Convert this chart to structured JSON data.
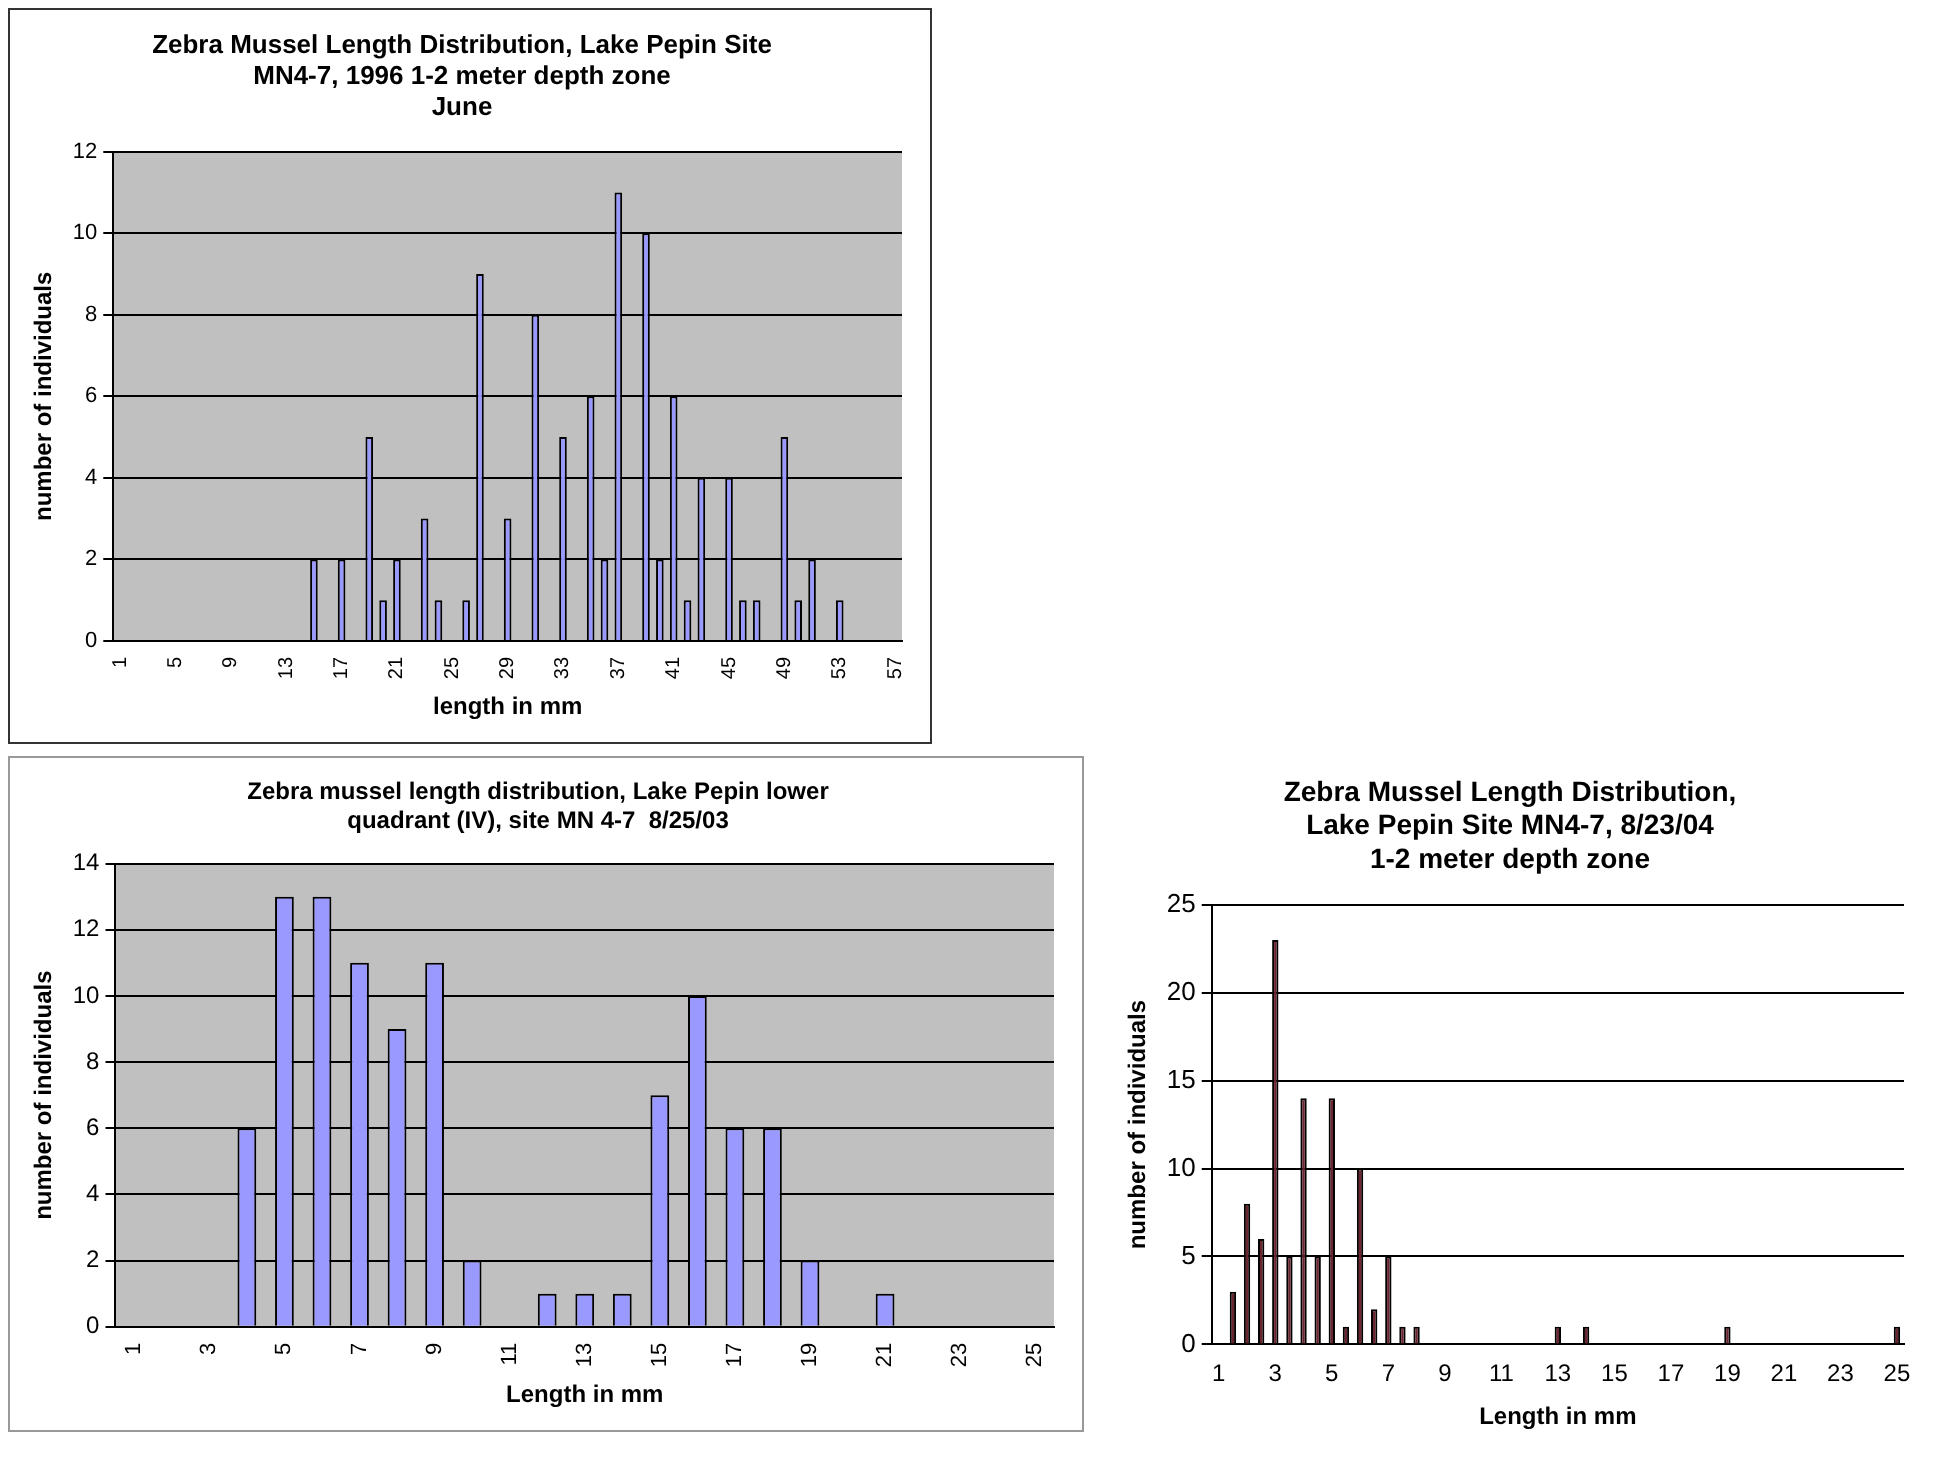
{
  "chart_data": [
    {
      "type": "bar",
      "title": "Zebra Mussel Length Distribution, Lake Pepin Site\nMN4-7, 1996 1-2 meter depth zone\nJune",
      "xlabel": "length in mm",
      "ylabel": "number of individuals",
      "color": "#9999ff",
      "grid": "y",
      "ylim": [
        0,
        12
      ],
      "yticks": [
        0,
        2,
        4,
        6,
        8,
        10,
        12
      ],
      "categories": [
        "1",
        null,
        null,
        null,
        "5",
        null,
        null,
        null,
        "9",
        null,
        null,
        null,
        "13",
        null,
        null,
        null,
        "17",
        null,
        null,
        null,
        "21",
        null,
        null,
        null,
        "25",
        null,
        null,
        null,
        "29",
        null,
        null,
        null,
        "33",
        null,
        null,
        null,
        "37",
        null,
        null,
        null,
        "41",
        null,
        null,
        null,
        "45",
        null,
        null,
        null,
        "49",
        null,
        null,
        null,
        "53",
        null,
        null,
        null,
        "57"
      ],
      "values": [
        0,
        0,
        0,
        0,
        0,
        0,
        0,
        0,
        0,
        0,
        0,
        0,
        0,
        0,
        2,
        0,
        2,
        0,
        5,
        1,
        2,
        0,
        3,
        1,
        0,
        1,
        9,
        0,
        3,
        0,
        8,
        0,
        5,
        0,
        6,
        2,
        11,
        0,
        10,
        2,
        6,
        1,
        4,
        0,
        4,
        1,
        1,
        0,
        5,
        1,
        2,
        0,
        1,
        0,
        0,
        0,
        0
      ]
    },
    {
      "type": "bar",
      "title": "Zebra mussel length distribution, Lake Pepin lower\nquadrant (IV), site MN 4-7  8/25/03",
      "xlabel": "Length in mm",
      "ylabel": "number of individuals",
      "color": "#9999ff",
      "grid": "y",
      "ylim": [
        0,
        14
      ],
      "yticks": [
        0,
        2,
        4,
        6,
        8,
        10,
        12,
        14
      ],
      "categories": [
        "1",
        null,
        "3",
        null,
        "5",
        null,
        "7",
        null,
        "9",
        null,
        "11",
        null,
        "13",
        null,
        "15",
        null,
        "17",
        null,
        "19",
        null,
        "21",
        null,
        "23",
        null,
        "25"
      ],
      "values": [
        0,
        0,
        0,
        6,
        13,
        13,
        11,
        9,
        11,
        2,
        0,
        1,
        1,
        1,
        7,
        10,
        6,
        6,
        2,
        0,
        1,
        0,
        0,
        0,
        0
      ]
    },
    {
      "type": "bar",
      "title": "Zebra Mussel Length Distribution,\nLake Pepin Site MN4-7, 8/23/04\n1-2 meter depth zone",
      "xlabel": "Length in mm",
      "ylabel": "number of individuals",
      "color": "#6b2430",
      "grid": "y",
      "ylim": [
        0,
        25
      ],
      "yticks": [
        0,
        5,
        10,
        15,
        20,
        25
      ],
      "categories": [
        "1",
        null,
        null,
        null,
        "3",
        null,
        null,
        null,
        "5",
        null,
        null,
        null,
        "7",
        null,
        null,
        null,
        "9",
        null,
        null,
        null,
        "11",
        null,
        null,
        null,
        "13",
        null,
        null,
        null,
        "15",
        null,
        null,
        null,
        "17",
        null,
        null,
        null,
        "19",
        null,
        null,
        null,
        "21",
        null,
        null,
        null,
        "23",
        null,
        null,
        null,
        "25"
      ],
      "values": [
        0,
        3,
        8,
        6,
        23,
        5,
        14,
        5,
        14,
        1,
        10,
        2,
        5,
        1,
        1,
        0,
        0,
        0,
        0,
        0,
        0,
        0,
        0,
        0,
        1,
        0,
        1,
        0,
        0,
        0,
        0,
        0,
        0,
        0,
        0,
        0,
        1,
        0,
        0,
        0,
        0,
        0,
        0,
        0,
        0,
        0,
        0,
        0,
        1
      ]
    }
  ]
}
